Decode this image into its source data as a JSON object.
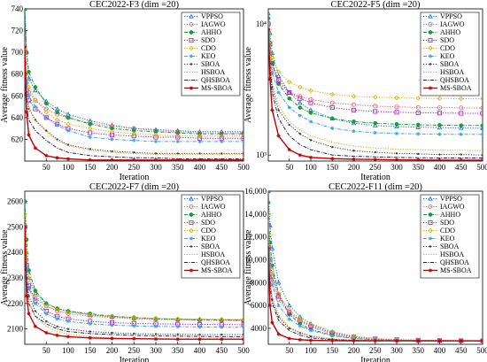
{
  "figure": {
    "legend_labels": [
      "VPPSO",
      "IAGWO",
      "AHHO",
      "SDO",
      "CDO",
      "KEO",
      "SBOA",
      "HSBOA",
      "QHSBOA",
      "MS-SBOA"
    ],
    "series_styles": [
      {
        "name": "VPPSO",
        "color": "#1f6fd0",
        "marker": "triangle",
        "dash": "dotted"
      },
      {
        "name": "IAGWO",
        "color": "#e8607a",
        "marker": "circle",
        "dash": "dotted"
      },
      {
        "name": "AHHO",
        "color": "#1a9a3c",
        "marker": "circle-filled",
        "dash": "dashdot"
      },
      {
        "name": "SDO",
        "color": "#a020c0",
        "marker": "square",
        "dash": "dotted"
      },
      {
        "name": "CDO",
        "color": "#d8b000",
        "marker": "diamond",
        "dash": "dotted"
      },
      {
        "name": "KEO",
        "color": "#3fa6e0",
        "marker": "star",
        "dash": "dashdot"
      },
      {
        "name": "SBOA",
        "color": "#404040",
        "marker": "dot",
        "dash": "dotted"
      },
      {
        "name": "HSBOA",
        "color": "#e8a020",
        "marker": "none",
        "dash": "dotted"
      },
      {
        "name": "QHSBOA",
        "color": "#202060",
        "marker": "none",
        "dash": "dashdot"
      },
      {
        "name": "MS-SBOA",
        "color": "#c00000",
        "marker": "star",
        "dash": "solid"
      }
    ]
  },
  "chart_data": [
    {
      "type": "line",
      "title": "CEC2022-F3 (dim =20)",
      "xlabel": "Iteration",
      "ylabel": "Average fitness value",
      "xlim": [
        1,
        500
      ],
      "ylim": [
        600,
        740
      ],
      "yscale": "linear",
      "xticks": [
        50,
        100,
        150,
        200,
        250,
        300,
        350,
        400,
        450,
        500
      ],
      "yticks": [
        620,
        640,
        660,
        680,
        700,
        720,
        740
      ],
      "ytick_labels": [
        "620",
        "640",
        "660",
        "680",
        "700",
        "720",
        "740"
      ],
      "x": [
        1,
        5,
        10,
        25,
        50,
        75,
        100,
        150,
        200,
        250,
        300,
        350,
        400,
        450,
        500
      ],
      "series": [
        {
          "name": "VPPSO",
          "values": [
            740,
            700,
            676,
            665,
            655,
            648,
            643,
            637,
            633,
            630,
            629,
            628,
            627,
            627,
            627
          ]
        },
        {
          "name": "IAGWO",
          "values": [
            690,
            672,
            663,
            656,
            648,
            643,
            640,
            635,
            632,
            630,
            628,
            627,
            626,
            626,
            626
          ]
        },
        {
          "name": "AHHO",
          "values": [
            740,
            700,
            682,
            668,
            653,
            645,
            640,
            634,
            630,
            628,
            627,
            626,
            625,
            625,
            625
          ]
        },
        {
          "name": "SDO",
          "values": [
            680,
            665,
            656,
            648,
            640,
            634,
            630,
            626,
            624,
            623,
            622,
            622,
            621,
            621,
            621
          ]
        },
        {
          "name": "CDO",
          "values": [
            700,
            680,
            668,
            656,
            645,
            638,
            634,
            630,
            627,
            625,
            624,
            623,
            623,
            623,
            623
          ]
        },
        {
          "name": "KEO",
          "values": [
            690,
            672,
            660,
            650,
            640,
            633,
            628,
            622,
            620,
            619,
            618,
            618,
            618,
            618,
            618
          ]
        },
        {
          "name": "SBOA",
          "values": [
            680,
            660,
            648,
            638,
            628,
            620,
            615,
            611,
            609,
            608,
            607,
            607,
            607,
            607,
            607
          ]
        },
        {
          "name": "HSBOA",
          "values": [
            690,
            666,
            650,
            637,
            627,
            619,
            614,
            610,
            608,
            607,
            606,
            606,
            606,
            606,
            606
          ]
        },
        {
          "name": "QHSBOA",
          "values": [
            670,
            650,
            638,
            628,
            619,
            612,
            608,
            605,
            604,
            603,
            603,
            602,
            602,
            602,
            602
          ]
        },
        {
          "name": "MS-SBOA",
          "values": [
            705,
            645,
            624,
            612,
            605,
            603,
            602,
            601,
            601,
            601,
            601,
            601,
            601,
            601,
            601
          ]
        }
      ]
    },
    {
      "type": "line",
      "title": "CEC2022-F5 (dim =20)",
      "xlabel": "Iteration",
      "ylabel": "Average fitness value",
      "xlim": [
        1,
        500
      ],
      "ylim": [
        900,
        13000
      ],
      "yscale": "log",
      "xticks": [
        50,
        100,
        150,
        200,
        250,
        300,
        350,
        400,
        450,
        500
      ],
      "yticks": [
        1000,
        10000
      ],
      "ytick_labels": [
        "10³",
        "10⁴"
      ],
      "x": [
        1,
        5,
        10,
        25,
        50,
        75,
        100,
        150,
        200,
        250,
        300,
        350,
        400,
        450,
        500
      ],
      "series": [
        {
          "name": "VPPSO",
          "values": [
            12000,
            8500,
            6000,
            4000,
            3000,
            2500,
            2200,
            1900,
            1750,
            1680,
            1650,
            1630,
            1620,
            1610,
            1600
          ]
        },
        {
          "name": "IAGWO",
          "values": [
            9000,
            6000,
            4500,
            3500,
            3000,
            2800,
            2650,
            2500,
            2420,
            2360,
            2330,
            2310,
            2300,
            2290,
            2280
          ]
        },
        {
          "name": "AHHO",
          "values": [
            11000,
            7000,
            5000,
            3500,
            2700,
            2300,
            2100,
            1900,
            1800,
            1750,
            1720,
            1700,
            1690,
            1680,
            1680
          ]
        },
        {
          "name": "SDO",
          "values": [
            10000,
            7000,
            5000,
            3700,
            3000,
            2700,
            2500,
            2300,
            2200,
            2150,
            2120,
            2100,
            2090,
            2080,
            2080
          ]
        },
        {
          "name": "CDO",
          "values": [
            10000,
            7000,
            5500,
            4300,
            3600,
            3300,
            3100,
            2900,
            2800,
            2760,
            2730,
            2710,
            2700,
            2690,
            2690
          ]
        },
        {
          "name": "KEO",
          "values": [
            10000,
            6000,
            4200,
            3000,
            2300,
            2000,
            1800,
            1600,
            1520,
            1480,
            1460,
            1450,
            1440,
            1440,
            1440
          ]
        },
        {
          "name": "SBOA",
          "values": [
            9000,
            5000,
            3300,
            2200,
            1700,
            1450,
            1300,
            1150,
            1080,
            1050,
            1030,
            1020,
            1010,
            1010,
            1000
          ]
        },
        {
          "name": "HSBOA",
          "values": [
            9500,
            5500,
            3600,
            2400,
            1800,
            1550,
            1400,
            1250,
            1170,
            1130,
            1110,
            1100,
            1090,
            1090,
            1080
          ]
        },
        {
          "name": "QHSBOA",
          "values": [
            9000,
            4800,
            3000,
            1900,
            1400,
            1200,
            1100,
            1000,
            980,
            970,
            960,
            955,
            950,
            950,
            950
          ]
        },
        {
          "name": "MS-SBOA",
          "values": [
            9000,
            3800,
            2200,
            1400,
            1100,
            1000,
            960,
            940,
            930,
            925,
            920,
            918,
            916,
            915,
            915
          ]
        }
      ]
    },
    {
      "type": "line",
      "title": "CEC2022-F7 (dim =20)",
      "xlabel": "Iteration",
      "ylabel": "Average fitness value",
      "xlim": [
        1,
        500
      ],
      "ylim": [
        2040,
        2640
      ],
      "yscale": "linear",
      "xticks": [
        50,
        100,
        150,
        200,
        250,
        300,
        350,
        400,
        450,
        500
      ],
      "yticks": [
        2100,
        2200,
        2300,
        2400,
        2500,
        2600
      ],
      "ytick_labels": [
        "2100",
        "2200",
        "2300",
        "2400",
        "2500",
        "2600"
      ],
      "x": [
        1,
        5,
        10,
        25,
        50,
        75,
        100,
        150,
        200,
        250,
        300,
        350,
        400,
        450,
        500
      ],
      "series": [
        {
          "name": "VPPSO",
          "values": [
            2600,
            2400,
            2300,
            2240,
            2200,
            2180,
            2170,
            2155,
            2148,
            2142,
            2140,
            2138,
            2137,
            2136,
            2135
          ]
        },
        {
          "name": "IAGWO",
          "values": [
            2450,
            2320,
            2260,
            2220,
            2190,
            2170,
            2160,
            2150,
            2145,
            2140,
            2138,
            2136,
            2135,
            2134,
            2133
          ]
        },
        {
          "name": "AHHO",
          "values": [
            2600,
            2450,
            2330,
            2250,
            2200,
            2180,
            2170,
            2160,
            2150,
            2145,
            2140,
            2138,
            2136,
            2135,
            2134
          ]
        },
        {
          "name": "SDO",
          "values": [
            2500,
            2350,
            2270,
            2210,
            2170,
            2150,
            2140,
            2130,
            2125,
            2122,
            2120,
            2119,
            2118,
            2117,
            2117
          ]
        },
        {
          "name": "CDO",
          "values": [
            2550,
            2400,
            2300,
            2230,
            2190,
            2175,
            2165,
            2155,
            2150,
            2145,
            2142,
            2140,
            2139,
            2138,
            2138
          ]
        },
        {
          "name": "KEO",
          "values": [
            2500,
            2340,
            2260,
            2200,
            2160,
            2140,
            2130,
            2120,
            2115,
            2112,
            2110,
            2109,
            2108,
            2107,
            2107
          ]
        },
        {
          "name": "SBOA",
          "values": [
            2450,
            2300,
            2230,
            2170,
            2130,
            2110,
            2100,
            2090,
            2085,
            2082,
            2080,
            2079,
            2078,
            2078,
            2078
          ]
        },
        {
          "name": "HSBOA",
          "values": [
            2400,
            2280,
            2210,
            2150,
            2110,
            2090,
            2080,
            2070,
            2065,
            2062,
            2060,
            2059,
            2058,
            2058,
            2058
          ]
        },
        {
          "name": "QHSBOA",
          "values": [
            2450,
            2280,
            2200,
            2150,
            2120,
            2100,
            2090,
            2082,
            2078,
            2075,
            2073,
            2072,
            2071,
            2070,
            2070
          ]
        },
        {
          "name": "MS-SBOA",
          "values": [
            2500,
            2230,
            2160,
            2110,
            2085,
            2075,
            2070,
            2065,
            2063,
            2062,
            2061,
            2060,
            2060,
            2060,
            2060
          ]
        }
      ]
    },
    {
      "type": "line",
      "title": "CEC2022-F11 (dim =20)",
      "xlabel": "Iteration",
      "ylabel": "Average fitness value",
      "xlim": [
        1,
        500
      ],
      "ylim": [
        2600,
        16000
      ],
      "yscale": "linear",
      "xticks": [
        50,
        100,
        150,
        200,
        250,
        300,
        350,
        400,
        450,
        500
      ],
      "yticks": [
        4000,
        6000,
        8000,
        10000,
        12000,
        14000,
        16000
      ],
      "ytick_labels": [
        "4000",
        "6000",
        "8000",
        "10,000",
        "12,000",
        "14,000",
        "16,000"
      ],
      "x": [
        1,
        5,
        10,
        25,
        50,
        75,
        100,
        150,
        200,
        250,
        300,
        350,
        400,
        450,
        500
      ],
      "series": [
        {
          "name": "VPPSO",
          "values": [
            16000,
            13000,
            11000,
            8000,
            6000,
            5000,
            4400,
            3700,
            3300,
            3100,
            3000,
            2950,
            2920,
            2910,
            2900
          ]
        },
        {
          "name": "IAGWO",
          "values": [
            12000,
            9500,
            8000,
            6500,
            5300,
            4600,
            4100,
            3500,
            3200,
            3050,
            2970,
            2940,
            2920,
            2910,
            2900
          ]
        },
        {
          "name": "AHHO",
          "values": [
            15000,
            11500,
            9500,
            7000,
            5200,
            4400,
            3900,
            3400,
            3100,
            3000,
            2950,
            2930,
            2920,
            2910,
            2900
          ]
        },
        {
          "name": "SDO",
          "values": [
            13000,
            10000,
            8500,
            6800,
            5400,
            4700,
            4200,
            3600,
            3250,
            3080,
            3000,
            2960,
            2930,
            2920,
            2910
          ]
        },
        {
          "name": "CDO",
          "values": [
            14000,
            10500,
            8800,
            7000,
            5600,
            4800,
            4300,
            3700,
            3300,
            3100,
            3000,
            2950,
            2930,
            2920,
            2910
          ]
        },
        {
          "name": "KEO",
          "values": [
            13000,
            9500,
            7800,
            6000,
            4800,
            4200,
            3800,
            3350,
            3100,
            3000,
            2950,
            2930,
            2920,
            2910,
            2900
          ]
        },
        {
          "name": "SBOA",
          "values": [
            11000,
            8000,
            6500,
            5000,
            4000,
            3600,
            3300,
            3050,
            2950,
            2920,
            2910,
            2900,
            2900,
            2900,
            2900
          ]
        },
        {
          "name": "HSBOA",
          "values": [
            12000,
            8500,
            6800,
            5200,
            4100,
            3650,
            3350,
            3080,
            2970,
            2930,
            2910,
            2900,
            2900,
            2900,
            2900
          ]
        },
        {
          "name": "QHSBOA",
          "values": [
            11000,
            7800,
            6200,
            4700,
            3800,
            3400,
            3150,
            3000,
            2940,
            2920,
            2910,
            2900,
            2900,
            2900,
            2900
          ]
        },
        {
          "name": "MS-SBOA",
          "values": [
            11000,
            6000,
            4500,
            3500,
            3100,
            3000,
            2950,
            2920,
            2910,
            2905,
            2900,
            2900,
            2900,
            2900,
            2900
          ]
        }
      ]
    }
  ]
}
